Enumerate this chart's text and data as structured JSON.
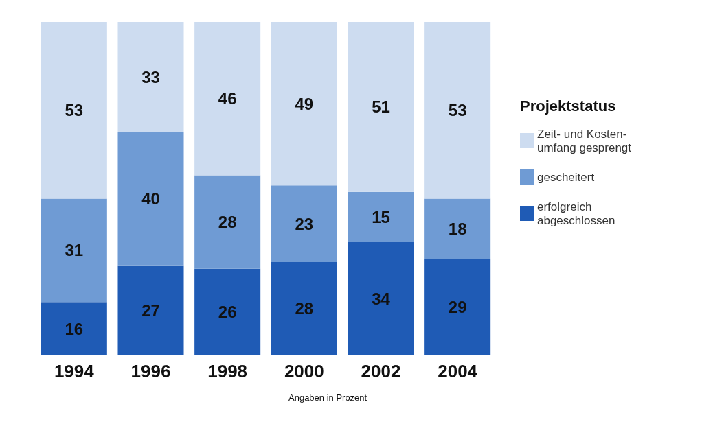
{
  "chart_data": {
    "type": "bar",
    "stacked": true,
    "categories": [
      "1994",
      "1996",
      "1998",
      "2000",
      "2002",
      "2004"
    ],
    "series": [
      {
        "name": "erfolgreich\nabgeschlossen",
        "color": "#1f5bb5",
        "values": [
          16,
          27,
          26,
          28,
          34,
          29
        ]
      },
      {
        "name": "gescheitert",
        "color": "#6f9bd4",
        "values": [
          31,
          40,
          28,
          23,
          15,
          18
        ]
      },
      {
        "name": "Zeit- und Kosten-\numfang gesprengt",
        "color": "#cddcf0",
        "values": [
          53,
          33,
          46,
          49,
          51,
          53
        ]
      }
    ],
    "ylim": [
      0,
      100
    ],
    "tick_labels": "x",
    "data_labels": true,
    "legend": "right",
    "legend_title": "Projektstatus",
    "annotations": [
      "Angaben in Prozent"
    ]
  }
}
